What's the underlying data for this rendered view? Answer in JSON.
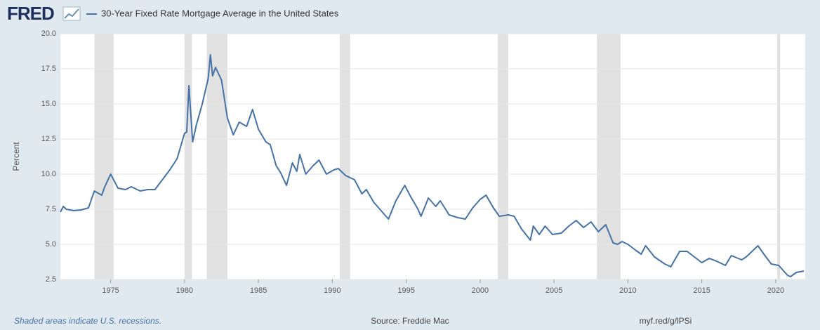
{
  "chart_data": {
    "type": "line",
    "logo": "FRED",
    "ylabel": "Percent",
    "footnote": "Shaded areas indicate U.S. recessions.",
    "source": "Source: Freddie Mac",
    "url": "myf.red/g/lPSi",
    "grid": true,
    "xlim": [
      1971.6,
      2022.0
    ],
    "ylim": [
      2.5,
      20
    ],
    "xticks": [
      1975,
      1980,
      1985,
      1990,
      1995,
      2000,
      2005,
      2010,
      2015,
      2020
    ],
    "yticks": [
      2.5,
      {
        "value": 5,
        "label": "5.0"
      },
      7.5,
      {
        "value": 10,
        "label": "10.0"
      },
      12.5,
      {
        "value": 15,
        "label": "15.0"
      },
      17.5,
      {
        "value": 20,
        "label": "20.0"
      }
    ],
    "recessions": [
      [
        1973.9,
        1975.2
      ],
      [
        1980.0,
        1980.5
      ],
      [
        1981.5,
        1982.9
      ],
      [
        1990.5,
        1991.2
      ],
      [
        2001.2,
        2001.9
      ],
      [
        2007.9,
        2009.5
      ],
      [
        2020.1,
        2020.3
      ]
    ],
    "recession_color": "#e1e1e1",
    "x": [
      1971.6,
      1971.8,
      1972.0,
      1972.5,
      1973.0,
      1973.5,
      1973.9,
      1974.4,
      1974.6,
      1975.0,
      1975.5,
      1976.0,
      1976.4,
      1977.0,
      1977.5,
      1978.0,
      1978.5,
      1979.0,
      1979.5,
      1980.0,
      1980.15,
      1980.3,
      1980.55,
      1980.8,
      1981.2,
      1981.6,
      1981.75,
      1981.9,
      1982.1,
      1982.5,
      1982.9,
      1983.3,
      1983.7,
      1984.2,
      1984.6,
      1985.0,
      1985.5,
      1985.8,
      1986.2,
      1986.5,
      1986.9,
      1987.3,
      1987.6,
      1987.8,
      1988.2,
      1988.7,
      1989.1,
      1989.6,
      1990.1,
      1990.4,
      1990.9,
      1991.5,
      1992.0,
      1992.3,
      1992.8,
      1993.3,
      1993.8,
      1994.3,
      1994.9,
      1995.3,
      1995.8,
      1996.0,
      1996.5,
      1997.0,
      1997.3,
      1997.9,
      1998.5,
      1999.0,
      1999.5,
      2000.0,
      2000.4,
      2000.9,
      2001.3,
      2001.9,
      2002.3,
      2002.8,
      2003.4,
      2003.6,
      2004.0,
      2004.4,
      2004.9,
      2005.5,
      2006.0,
      2006.5,
      2007.0,
      2007.5,
      2008.0,
      2008.5,
      2009.0,
      2009.3,
      2009.6,
      2010.0,
      2010.5,
      2010.9,
      2011.2,
      2011.8,
      2012.5,
      2012.9,
      2013.5,
      2014.0,
      2014.5,
      2015.0,
      2015.5,
      2016.0,
      2016.6,
      2017.0,
      2017.7,
      2018.0,
      2018.8,
      2019.2,
      2019.7,
      2020.2,
      2020.8,
      2021.0,
      2021.4,
      2021.9
    ],
    "series": [
      {
        "name": "30-Year Fixed Rate Mortgage Average in the United States",
        "color": "#4572a7",
        "values": [
          7.3,
          7.7,
          7.5,
          7.4,
          7.45,
          7.6,
          8.8,
          8.5,
          9.1,
          10.0,
          9.0,
          8.9,
          9.1,
          8.8,
          8.9,
          8.9,
          9.6,
          10.3,
          11.1,
          12.9,
          13.0,
          16.3,
          12.3,
          13.5,
          15.0,
          16.8,
          18.5,
          17.0,
          17.6,
          16.7,
          14.0,
          12.8,
          13.7,
          13.4,
          14.6,
          13.2,
          12.3,
          12.1,
          10.6,
          10.1,
          9.2,
          10.8,
          10.2,
          11.4,
          10.0,
          10.6,
          11.0,
          10.0,
          10.3,
          10.4,
          9.9,
          9.6,
          8.6,
          8.9,
          8.0,
          7.4,
          6.8,
          8.1,
          9.2,
          8.4,
          7.5,
          7.0,
          8.3,
          7.7,
          8.1,
          7.1,
          6.9,
          6.8,
          7.6,
          8.2,
          8.5,
          7.6,
          7.0,
          7.1,
          7.0,
          6.1,
          5.3,
          6.3,
          5.7,
          6.3,
          5.7,
          5.8,
          6.3,
          6.7,
          6.2,
          6.6,
          5.9,
          6.4,
          5.1,
          5.0,
          5.2,
          5.0,
          4.6,
          4.3,
          4.9,
          4.1,
          3.6,
          3.4,
          4.5,
          4.5,
          4.1,
          3.7,
          4.0,
          3.8,
          3.5,
          4.2,
          3.9,
          4.1,
          4.9,
          4.3,
          3.6,
          3.5,
          2.8,
          2.7,
          3.0,
          3.1
        ]
      }
    ]
  }
}
